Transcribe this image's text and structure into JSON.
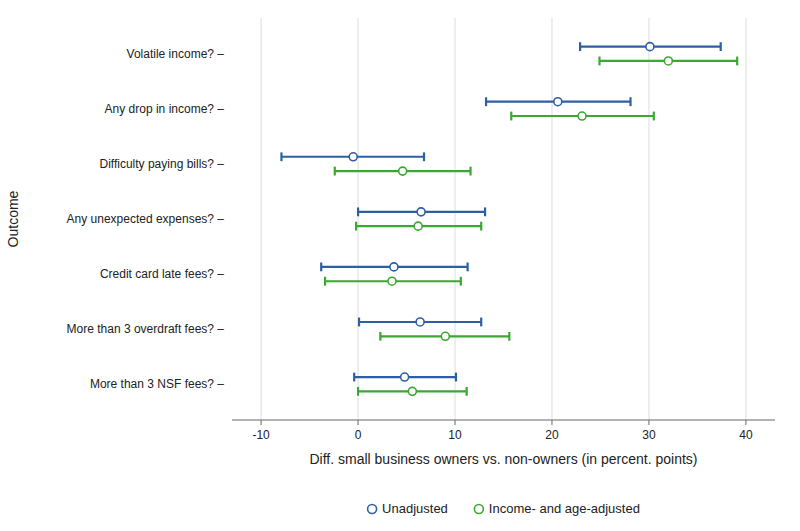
{
  "chart_data": {
    "type": "dot_whisker",
    "orientation": "horizontal",
    "categories": [
      "Volatile income? –",
      "Any drop in income? –",
      "Difficulty paying bills? –",
      "Any unexpected expenses? –",
      "Credit card late fees? –",
      "More than 3 overdraft fees? –",
      "More than 3 NSF fees? –"
    ],
    "series": [
      {
        "name": "Unadjusted",
        "color": "#2E5FA3",
        "values": [
          30.1,
          20.6,
          -0.5,
          6.5,
          3.7,
          6.4,
          4.8
        ],
        "ci_low": [
          22.9,
          13.2,
          -7.9,
          0.0,
          -3.8,
          0.1,
          -0.4
        ],
        "ci_high": [
          37.4,
          28.1,
          6.8,
          13.1,
          11.3,
          12.7,
          10.1
        ]
      },
      {
        "name": "Income- and age-adjusted",
        "color": "#3BA832",
        "values": [
          32.0,
          23.1,
          4.6,
          6.2,
          3.5,
          9.0,
          5.6
        ],
        "ci_low": [
          24.9,
          15.8,
          -2.4,
          -0.2,
          -3.4,
          2.3,
          0.0
        ],
        "ci_high": [
          39.1,
          30.5,
          11.6,
          12.7,
          10.6,
          15.6,
          11.2
        ]
      }
    ],
    "x_label": "Diff. small business owners vs. non-owners (in percent. points)",
    "y_label": "Outcome",
    "xlim": [
      -13,
      43
    ],
    "xticks": [
      -10,
      0,
      10,
      20,
      30,
      40
    ],
    "grid": true,
    "legend": "bottom"
  }
}
